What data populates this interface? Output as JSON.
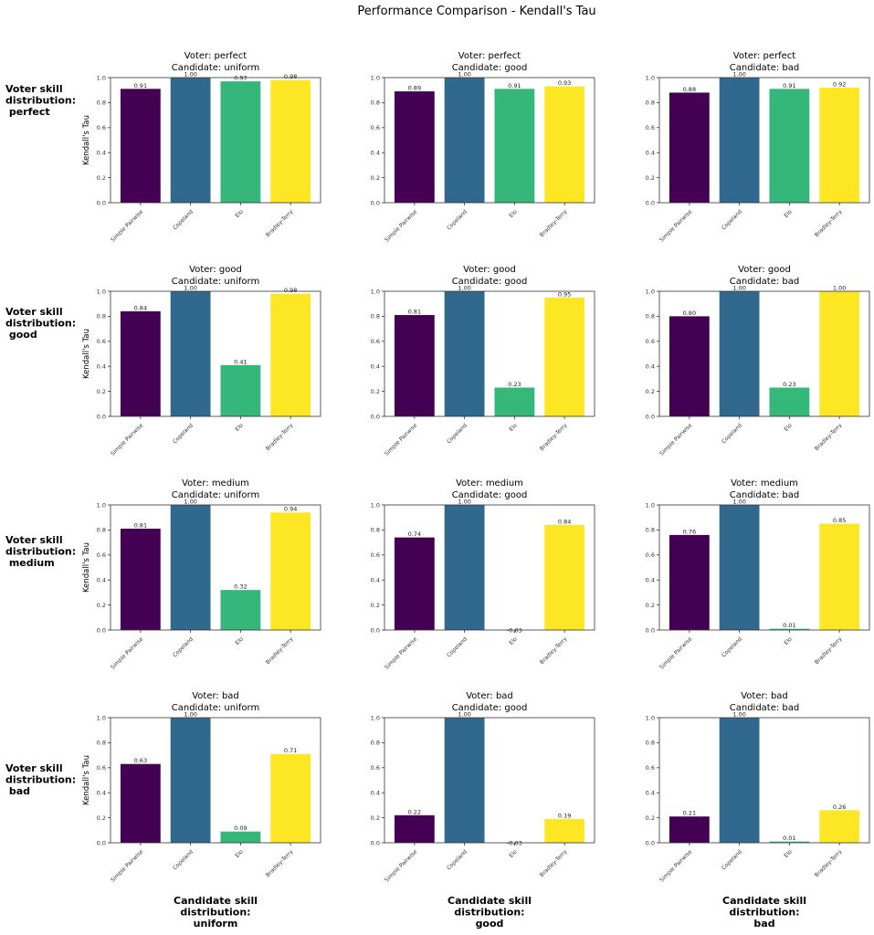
{
  "chart_data": {
    "type": "bar",
    "title": "Performance Comparison - Kendall's Tau",
    "ylabel": "Kendall's Tau",
    "ylim": [
      0,
      1.0
    ],
    "yticks": [
      "0.0",
      "0.2",
      "0.4",
      "0.6",
      "0.8",
      "1.0"
    ],
    "categories": [
      "Simple Pairwise",
      "Copeland",
      "Elo",
      "Bradley-Terry"
    ],
    "bar_colors": [
      "#440154",
      "#31688e",
      "#35b779",
      "#fde725"
    ],
    "grid": false,
    "layout": "4 rows x 3 columns",
    "row_labels": [
      [
        "Voter skill",
        "distribution:",
        " perfect"
      ],
      [
        "Voter skill",
        "distribution:",
        " good"
      ],
      [
        "Voter skill",
        "distribution:",
        " medium"
      ],
      [
        "Voter skill",
        "distribution:",
        " bad"
      ]
    ],
    "col_labels": [
      [
        "Candidate skill",
        "distribution:",
        "uniform"
      ],
      [
        "Candidate skill",
        "distribution:",
        "good"
      ],
      [
        "Candidate skill",
        "distribution:",
        "bad"
      ]
    ],
    "subplots": [
      {
        "title": [
          "Voter: perfect",
          "Candidate: uniform"
        ],
        "values": [
          0.91,
          1.0,
          0.97,
          0.98
        ],
        "labels": [
          "0.91",
          "1.00",
          "0.97",
          "0.98"
        ]
      },
      {
        "title": [
          "Voter: perfect",
          "Candidate: good"
        ],
        "values": [
          0.89,
          1.0,
          0.91,
          0.93
        ],
        "labels": [
          "0.89",
          "1.00",
          "0.91",
          "0.93"
        ]
      },
      {
        "title": [
          "Voter: perfect",
          "Candidate: bad"
        ],
        "values": [
          0.88,
          1.0,
          0.91,
          0.92
        ],
        "labels": [
          "0.88",
          "1.00",
          "0.91",
          "0.92"
        ]
      },
      {
        "title": [
          "Voter: good",
          "Candidate: uniform"
        ],
        "values": [
          0.84,
          1.0,
          0.41,
          0.98
        ],
        "labels": [
          "0.84",
          "1.00",
          "0.41",
          "0.98"
        ]
      },
      {
        "title": [
          "Voter: good",
          "Candidate: good"
        ],
        "values": [
          0.81,
          1.0,
          0.23,
          0.95
        ],
        "labels": [
          "0.81",
          "1.00",
          "0.23",
          "0.95"
        ]
      },
      {
        "title": [
          "Voter: good",
          "Candidate: bad"
        ],
        "values": [
          0.8,
          1.0,
          0.23,
          1.0
        ],
        "labels": [
          "0.80",
          "1.00",
          "0.23",
          "1.00"
        ]
      },
      {
        "title": [
          "Voter: medium",
          "Candidate: uniform"
        ],
        "values": [
          0.81,
          1.0,
          0.32,
          0.94
        ],
        "labels": [
          "0.81",
          "1.00",
          "0.32",
          "0.94"
        ]
      },
      {
        "title": [
          "Voter: medium",
          "Candidate: good"
        ],
        "values": [
          0.74,
          1.0,
          -0.03,
          0.84
        ],
        "labels": [
          "0.74",
          "1.00",
          "-0.03",
          "0.84"
        ]
      },
      {
        "title": [
          "Voter: medium",
          "Candidate: bad"
        ],
        "values": [
          0.76,
          1.0,
          0.01,
          0.85
        ],
        "labels": [
          "0.76",
          "1.00",
          "0.01",
          "0.85"
        ]
      },
      {
        "title": [
          "Voter: bad",
          "Candidate: uniform"
        ],
        "values": [
          0.63,
          1.0,
          0.09,
          0.71
        ],
        "labels": [
          "0.63",
          "1.00",
          "0.09",
          "0.71"
        ]
      },
      {
        "title": [
          "Voter: bad",
          "Candidate: good"
        ],
        "values": [
          0.22,
          1.0,
          -0.03,
          0.19
        ],
        "labels": [
          "0.22",
          "1.00",
          "-0.03",
          "0.19"
        ]
      },
      {
        "title": [
          "Voter: bad",
          "Candidate: bad"
        ],
        "values": [
          0.21,
          1.0,
          0.01,
          0.26
        ],
        "labels": [
          "0.21",
          "1.00",
          "0.01",
          "0.26"
        ]
      }
    ]
  }
}
